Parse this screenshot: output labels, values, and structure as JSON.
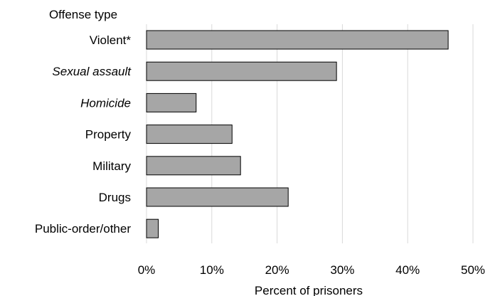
{
  "chart_data": {
    "type": "bar",
    "orientation": "horizontal",
    "categories": [
      {
        "label": "Violent*",
        "italic": false
      },
      {
        "label": "Sexual assault",
        "italic": true
      },
      {
        "label": "Homicide",
        "italic": true
      },
      {
        "label": "Property",
        "italic": false
      },
      {
        "label": "Military",
        "italic": false
      },
      {
        "label": "Drugs",
        "italic": false
      },
      {
        "label": "Public-order/other",
        "italic": false
      }
    ],
    "values": [
      46.2,
      29.1,
      7.6,
      13.1,
      14.4,
      21.7,
      1.8
    ],
    "category_axis_title": "Offense type",
    "xlabel": "Percent of prisoners",
    "xlim": [
      0,
      50
    ],
    "xticks": [
      {
        "value": 0,
        "label": "0%"
      },
      {
        "value": 10,
        "label": "10%"
      },
      {
        "value": 20,
        "label": "20%"
      },
      {
        "value": 30,
        "label": "30%"
      },
      {
        "value": 40,
        "label": "40%"
      },
      {
        "value": 50,
        "label": "50%"
      }
    ],
    "grid": true,
    "colors": {
      "bar_fill": "#a6a6a6",
      "bar_stroke": "#000000",
      "grid": "#d9d9d9"
    }
  }
}
